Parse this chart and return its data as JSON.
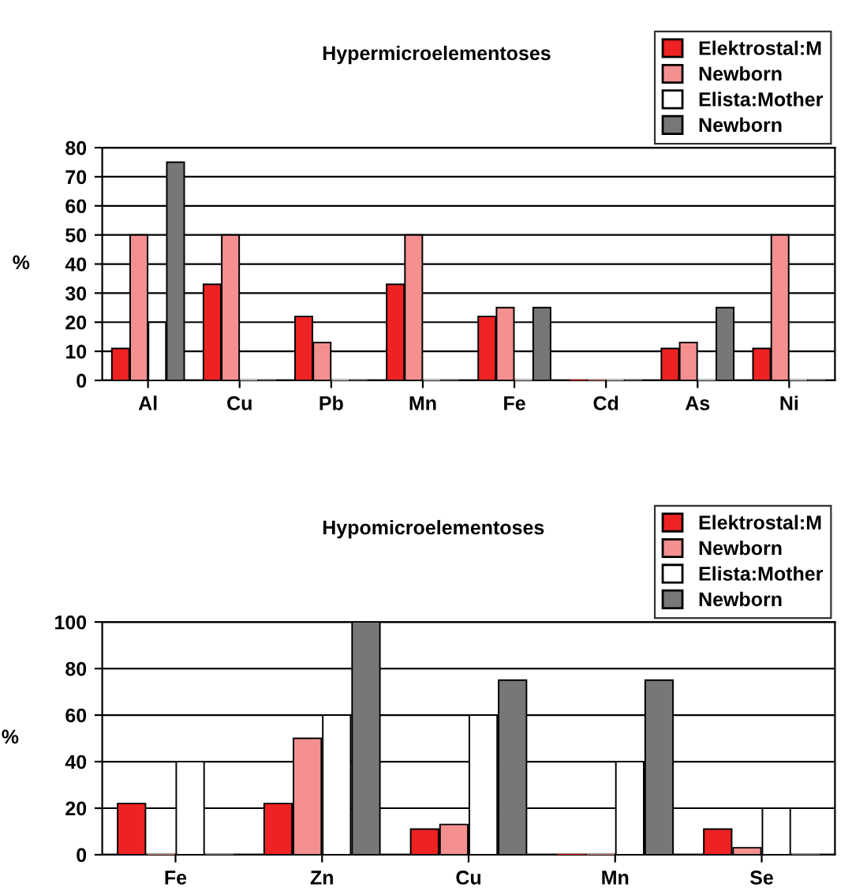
{
  "chart_data": [
    {
      "type": "bar",
      "title": "Hypermicroelementoses",
      "ylabel": "%",
      "categories": [
        "Al",
        "Cu",
        "Pb",
        "Mn",
        "Fe",
        "Cd",
        "As",
        "Ni"
      ],
      "ylim": [
        0,
        80
      ],
      "yticks": [
        0,
        10,
        20,
        30,
        40,
        50,
        60,
        70,
        80
      ],
      "grid": "y",
      "legend": "top right",
      "series": [
        {
          "name": "Elektrostal:M",
          "color": "#ee2222",
          "values": [
            11,
            33,
            22,
            33,
            22,
            0,
            11,
            11
          ]
        },
        {
          "name": "Newborn",
          "color": "#f49090",
          "values": [
            50,
            50,
            13,
            50,
            25,
            0,
            13,
            50
          ]
        },
        {
          "name": "Elista:Mother",
          "color": "#ffffff",
          "values": [
            20,
            0,
            0,
            0,
            0,
            0,
            0,
            0
          ]
        },
        {
          "name": "Newborn",
          "color": "#777777",
          "values": [
            75,
            0,
            0,
            0,
            25,
            0,
            25,
            0
          ]
        }
      ]
    },
    {
      "type": "bar",
      "title": "Hypomicroelementoses",
      "ylabel": "%",
      "categories": [
        "Fe",
        "Zn",
        "Cu",
        "Mn",
        "Se"
      ],
      "ylim": [
        0,
        100
      ],
      "yticks": [
        0,
        20,
        40,
        60,
        80,
        100
      ],
      "grid": "y",
      "legend": "top right",
      "series": [
        {
          "name": "Elektrostal:M",
          "color": "#ee2222",
          "values": [
            22,
            22,
            11,
            0,
            11
          ]
        },
        {
          "name": "Newborn",
          "color": "#f49090",
          "values": [
            0,
            50,
            13,
            0,
            3
          ]
        },
        {
          "name": "Elista:Mother",
          "color": "#ffffff",
          "values": [
            40,
            60,
            60,
            40,
            20
          ]
        },
        {
          "name": "Newborn",
          "color": "#777777",
          "values": [
            0,
            100,
            75,
            75,
            0
          ]
        }
      ]
    }
  ]
}
